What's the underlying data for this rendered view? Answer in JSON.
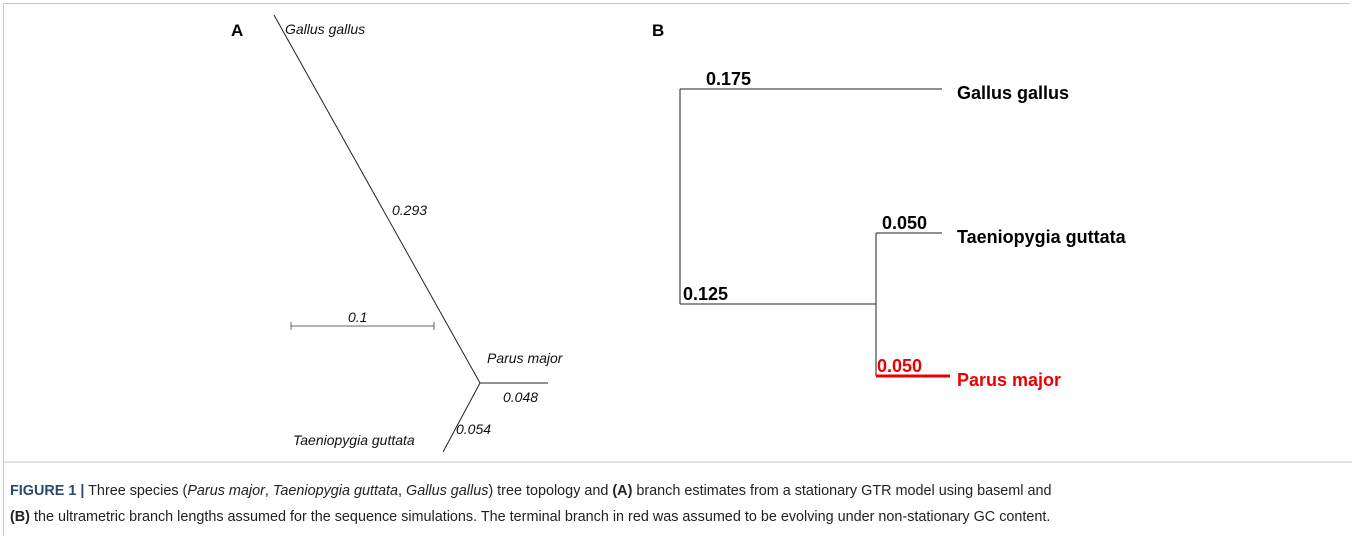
{
  "panel_a": {
    "label": "A",
    "taxa": [
      "Gallus gallus",
      "Parus major",
      "Taeniopygia guttata"
    ],
    "lengths": [
      "0.293",
      "0.048",
      "0.054"
    ],
    "scale": "0.1"
  },
  "panel_b": {
    "label": "B",
    "taxa": [
      "Gallus gallus",
      "Taeniopygia guttata",
      "Parus major"
    ],
    "lengths": [
      "0.175",
      "0.125",
      "0.050",
      "0.050"
    ]
  },
  "caption": {
    "runs": [
      "FIGURE 1 |",
      " Three species (",
      "Parus major",
      ", ",
      "Taeniopygia guttata",
      ", ",
      "Gallus gallus",
      ") tree topology and ",
      "(A)",
      " branch estimates from a stationary GTR model using baseml and",
      "(B)",
      " the ultrametric branch lengths assumed for the sequence simulations. The terminal branch in red was assumed to be evolving under non-stationary GC content."
    ]
  }
}
